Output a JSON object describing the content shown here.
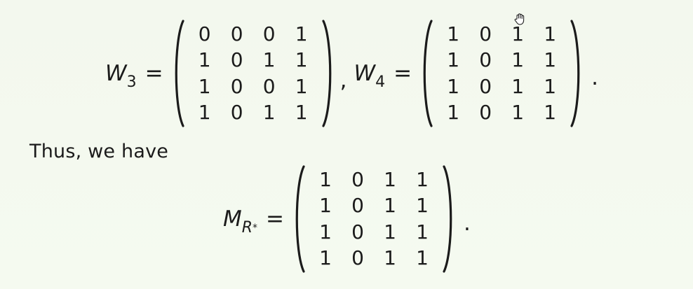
{
  "equations": {
    "row1": {
      "w3": {
        "symbol": "W",
        "subscript": "3",
        "equals": "="
      },
      "w3_matrix": [
        [
          "0",
          "0",
          "0",
          "1"
        ],
        [
          "1",
          "0",
          "1",
          "1"
        ],
        [
          "1",
          "0",
          "0",
          "1"
        ],
        [
          "1",
          "0",
          "1",
          "1"
        ]
      ],
      "separator": ",",
      "w4": {
        "symbol": "W",
        "subscript": "4",
        "equals": "="
      },
      "w4_matrix": [
        [
          "1",
          "0",
          "1",
          "1"
        ],
        [
          "1",
          "0",
          "1",
          "1"
        ],
        [
          "1",
          "0",
          "1",
          "1"
        ],
        [
          "1",
          "0",
          "1",
          "1"
        ]
      ],
      "terminator": "."
    },
    "text": "Thus, we have",
    "row2": {
      "m": {
        "symbol": "M",
        "subscript": "R",
        "superscript": "*",
        "equals": "="
      },
      "m_matrix": [
        [
          "1",
          "0",
          "1",
          "1"
        ],
        [
          "1",
          "0",
          "1",
          "1"
        ],
        [
          "1",
          "0",
          "1",
          "1"
        ],
        [
          "1",
          "0",
          "1",
          "1"
        ]
      ],
      "terminator": "."
    }
  },
  "cursor": {
    "icon": "hand-cursor-icon"
  }
}
